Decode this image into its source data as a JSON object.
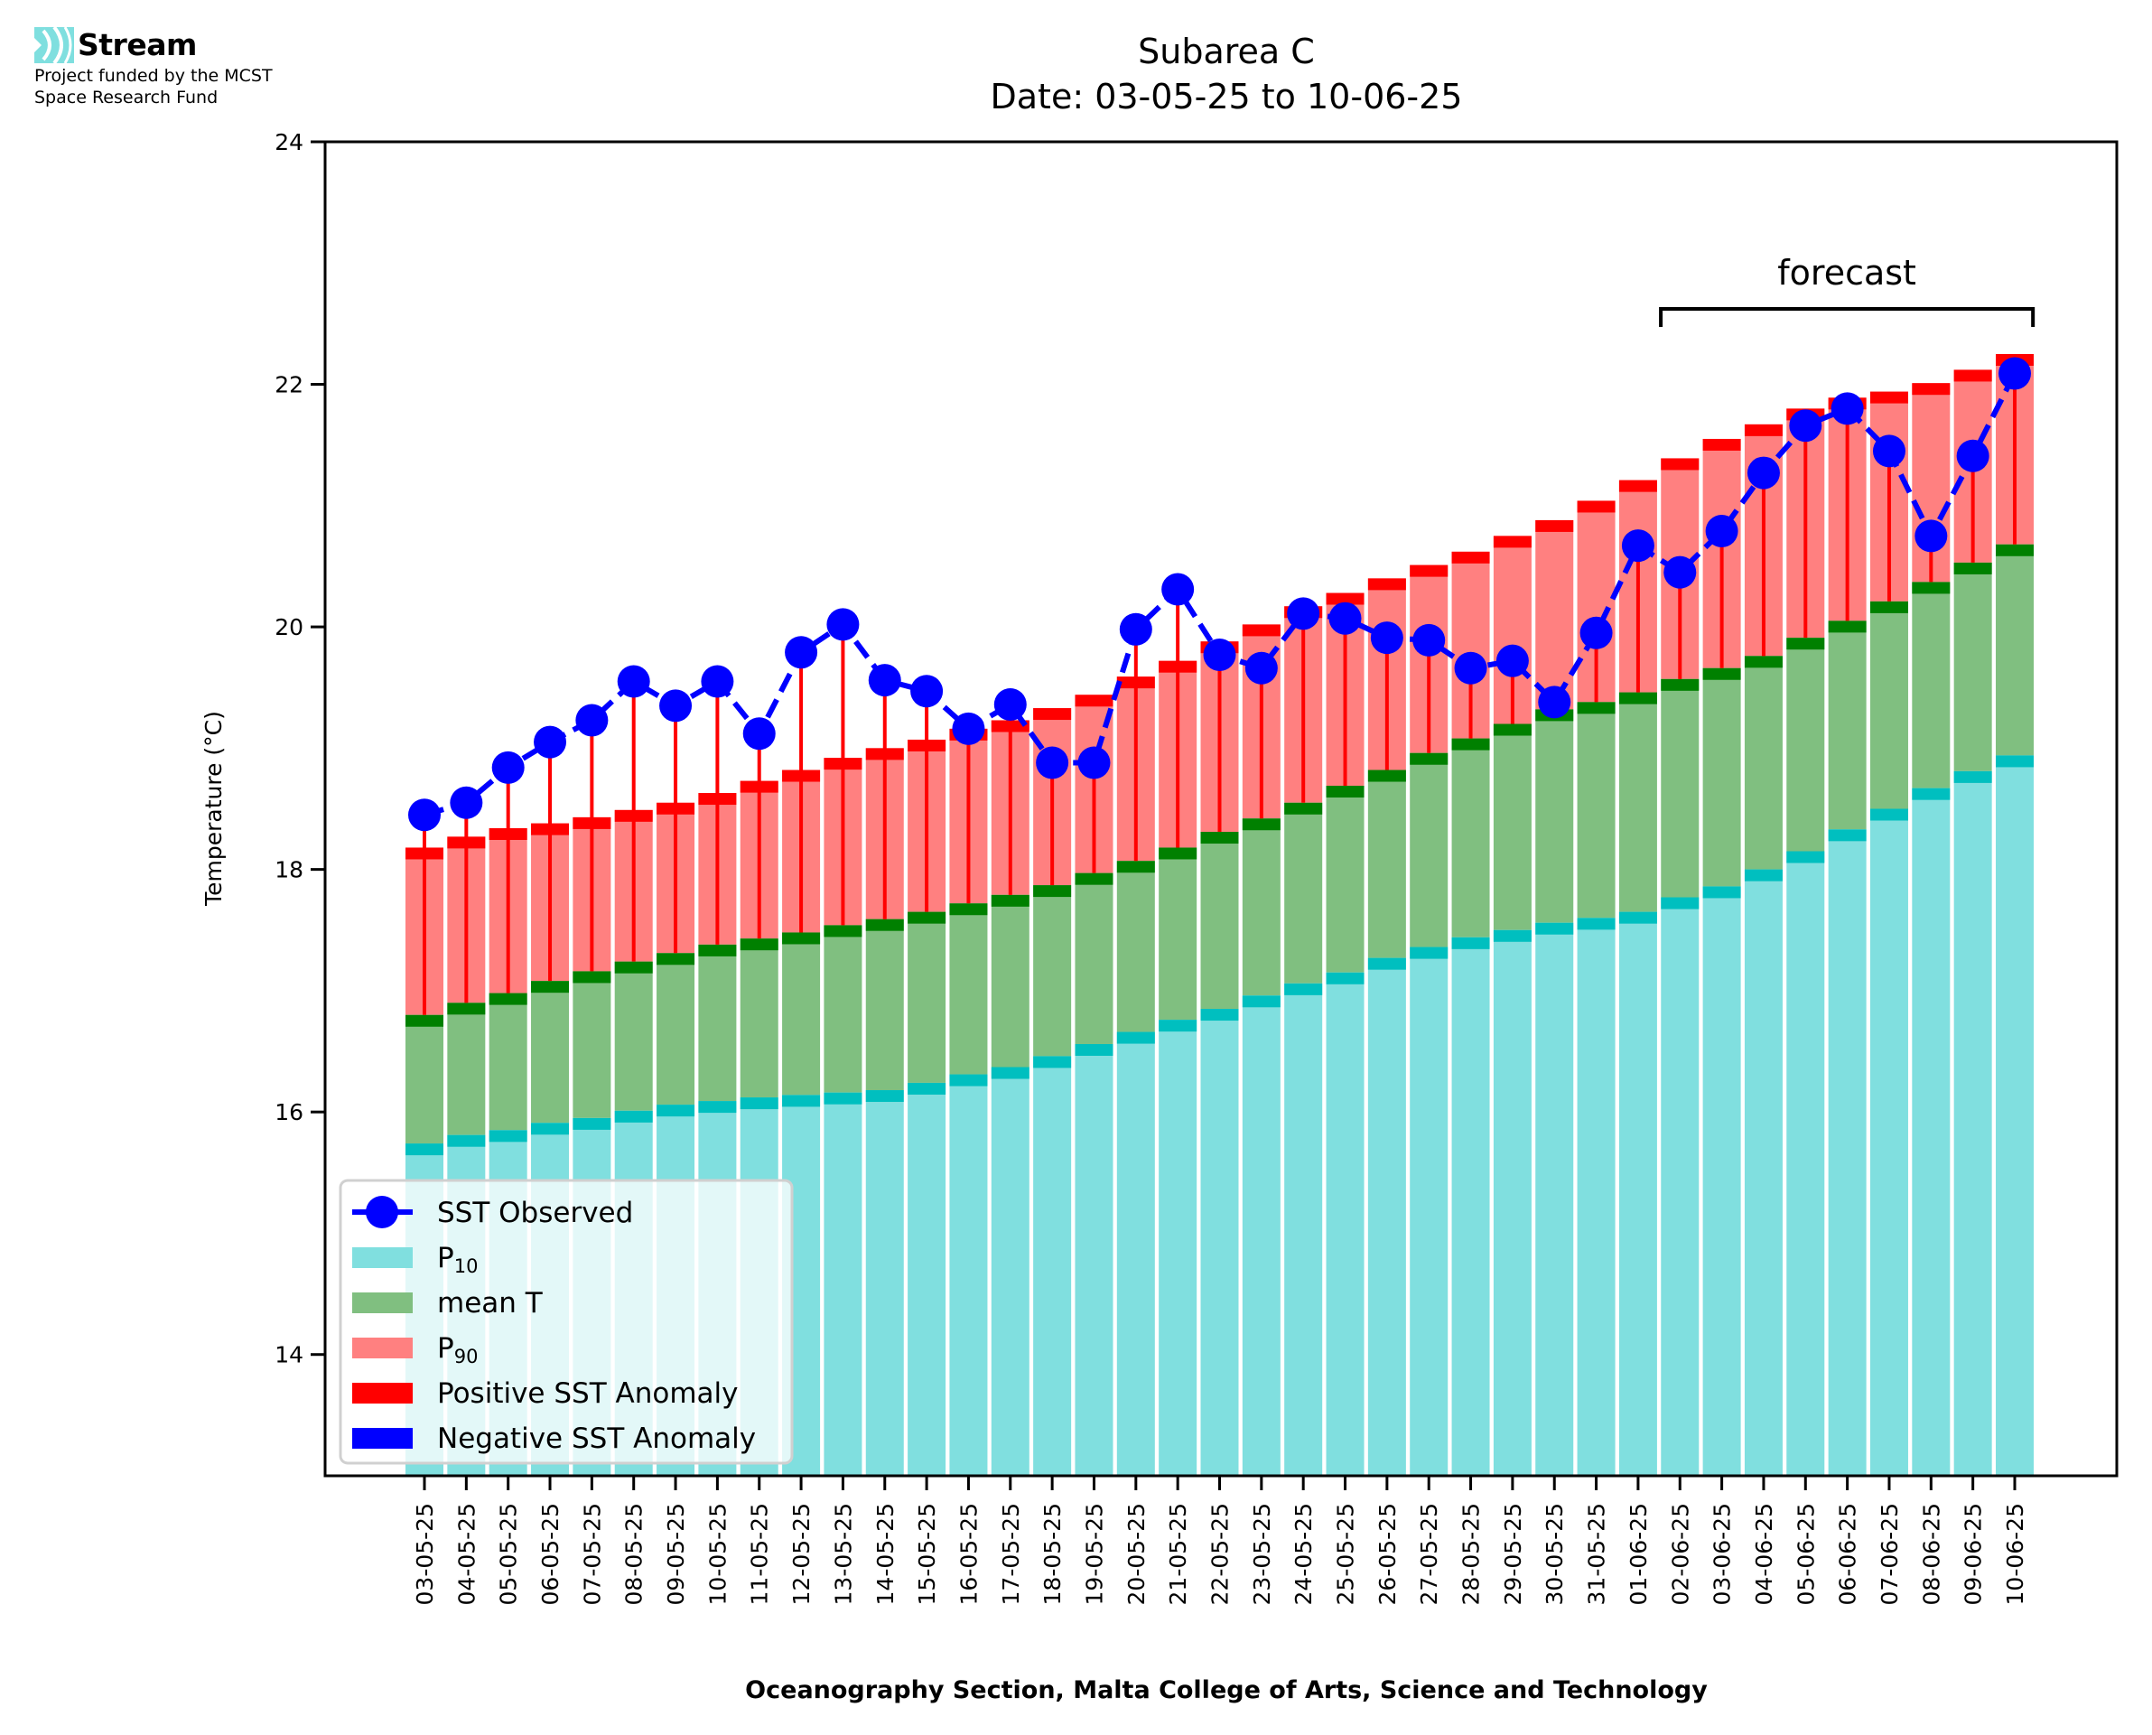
{
  "logo": {
    "name": "Stream",
    "subtitle_line1": "Project funded by the MCST",
    "subtitle_line2": "Space Research Fund",
    "icon": "stream-waves-icon",
    "color": "#7fdfdf"
  },
  "colors": {
    "p10": "#80dfdf",
    "p10_cap": "#00bfbf",
    "mean": "#80bf80",
    "mean_cap": "#008000",
    "p90": "#ff8080",
    "p90_cap": "#ff0000",
    "positive_anomaly": "#ff0000",
    "negative_anomaly": "#0000ff",
    "observed": "#0000ff"
  },
  "chart_data": {
    "type": "bar",
    "title": "Subarea C",
    "subtitle": "Date: 03-05-25 to 10-06-25",
    "xlabel": "Oceanography Section, Malta College of Arts, Science and Technology",
    "ylabel": "Temperature (°C)",
    "ylim": [
      13,
      24
    ],
    "yticks": [
      14,
      16,
      18,
      20,
      22,
      24
    ],
    "grid": false,
    "legend_position": "lower-left",
    "categories": [
      "03-05-25",
      "04-05-25",
      "05-05-25",
      "06-05-25",
      "07-05-25",
      "08-05-25",
      "09-05-25",
      "10-05-25",
      "11-05-25",
      "12-05-25",
      "13-05-25",
      "14-05-25",
      "15-05-25",
      "16-05-25",
      "17-05-25",
      "18-05-25",
      "19-05-25",
      "20-05-25",
      "21-05-25",
      "22-05-25",
      "23-05-25",
      "24-05-25",
      "25-05-25",
      "26-05-25",
      "27-05-25",
      "28-05-25",
      "29-05-25",
      "30-05-25",
      "31-05-25",
      "01-06-25",
      "02-06-25",
      "03-06-25",
      "04-06-25",
      "05-06-25",
      "06-06-25",
      "07-06-25",
      "08-06-25",
      "09-06-25",
      "10-06-25"
    ],
    "series": [
      {
        "name": "P10",
        "label_main": "P",
        "label_sub": "10",
        "kind": "bar",
        "values": [
          15.74,
          15.81,
          15.85,
          15.91,
          15.95,
          16.01,
          16.06,
          16.09,
          16.12,
          16.14,
          16.16,
          16.18,
          16.24,
          16.31,
          16.37,
          16.46,
          16.56,
          16.66,
          16.76,
          16.85,
          16.96,
          17.06,
          17.15,
          17.27,
          17.36,
          17.44,
          17.5,
          17.56,
          17.6,
          17.65,
          17.77,
          17.86,
          18.0,
          18.15,
          18.33,
          18.5,
          18.67,
          18.81,
          18.94
        ]
      },
      {
        "name": "mean T",
        "label_main": "mean T",
        "label_sub": "",
        "kind": "bar",
        "values": [
          16.8,
          16.9,
          16.98,
          17.08,
          17.16,
          17.24,
          17.31,
          17.38,
          17.43,
          17.48,
          17.54,
          17.59,
          17.65,
          17.72,
          17.79,
          17.87,
          17.97,
          18.07,
          18.18,
          18.31,
          18.42,
          18.55,
          18.69,
          18.82,
          18.96,
          19.08,
          19.2,
          19.32,
          19.38,
          19.46,
          19.57,
          19.66,
          19.76,
          19.91,
          20.05,
          20.21,
          20.37,
          20.53,
          20.68
        ]
      },
      {
        "name": "P90",
        "label_main": "P",
        "label_sub": "90",
        "kind": "bar",
        "values": [
          18.18,
          18.27,
          18.34,
          18.38,
          18.43,
          18.49,
          18.55,
          18.63,
          18.73,
          18.82,
          18.92,
          19.0,
          19.07,
          19.16,
          19.23,
          19.33,
          19.44,
          19.59,
          19.72,
          19.88,
          20.02,
          20.17,
          20.28,
          20.4,
          20.51,
          20.62,
          20.75,
          20.88,
          21.04,
          21.21,
          21.39,
          21.55,
          21.67,
          21.8,
          21.89,
          21.94,
          22.01,
          22.12,
          22.25
        ]
      },
      {
        "name": "SST Observed",
        "label_main": "SST Observed",
        "label_sub": "",
        "kind": "line",
        "values": [
          18.45,
          18.55,
          18.84,
          19.05,
          19.23,
          19.55,
          19.35,
          19.55,
          19.12,
          19.79,
          20.02,
          19.56,
          19.47,
          19.16,
          19.36,
          18.88,
          18.88,
          19.98,
          20.31,
          19.77,
          19.66,
          20.11,
          20.07,
          19.91,
          19.89,
          19.66,
          19.72,
          19.38,
          19.95,
          20.67,
          20.45,
          20.79,
          21.27,
          21.66,
          21.8,
          21.45,
          20.75,
          21.41,
          22.09
        ]
      }
    ],
    "legend": [
      {
        "label_main": "SST Observed",
        "label_sub": "",
        "type": "line-marker",
        "color": "#0000ff"
      },
      {
        "label_main": "P",
        "label_sub": "10",
        "type": "patch",
        "color": "#80dfdf"
      },
      {
        "label_main": "mean T",
        "label_sub": "",
        "type": "patch",
        "color": "#80bf80"
      },
      {
        "label_main": "P",
        "label_sub": "90",
        "type": "patch",
        "color": "#ff8080"
      },
      {
        "label_main": "Positive SST Anomaly",
        "label_sub": "",
        "type": "patch",
        "color": "#ff0000"
      },
      {
        "label_main": "Negative SST Anomaly",
        "label_sub": "",
        "type": "patch",
        "color": "#0000ff"
      }
    ],
    "annotations": [
      {
        "text": "forecast",
        "type": "bracket",
        "from": "02-06-25",
        "to": "10-06-25"
      }
    ]
  }
}
